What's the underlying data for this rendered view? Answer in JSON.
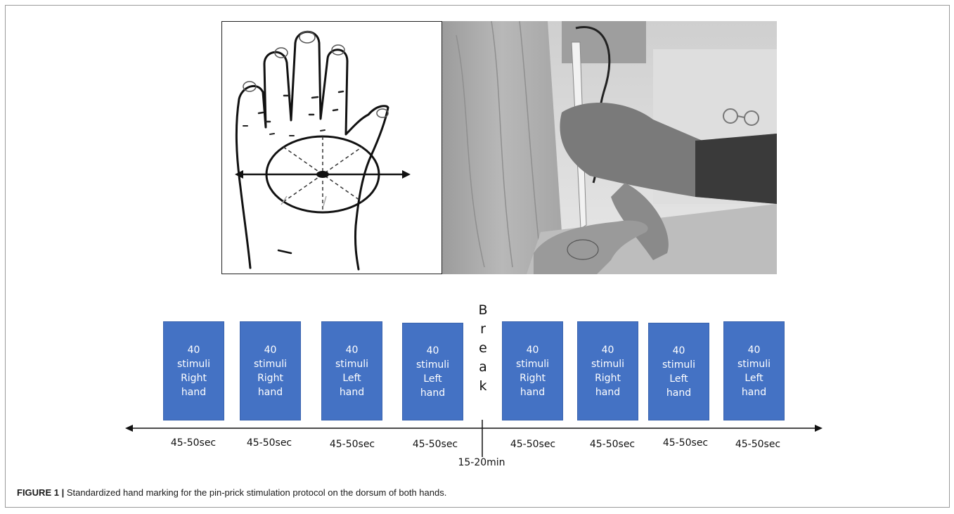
{
  "figure": {
    "caption_label": "FIGURE 1 |",
    "caption_text": " Standardized hand marking for the pin-prick stimulation protocol on the dorsum of both hands."
  },
  "panels": {
    "hand_drawing_icon": "hand-outline-with-circle-icon",
    "photo_icon": "pin-prick-photo-icon"
  },
  "timeline": {
    "blocks": [
      {
        "count": "40",
        "unit": "stimuli",
        "side": "Right",
        "part": "hand",
        "duration": "45-50sec"
      },
      {
        "count": "40",
        "unit": "stimuli",
        "side": "Right",
        "part": "hand",
        "duration": "45-50sec"
      },
      {
        "count": "40",
        "unit": "stimuli",
        "side": "Left",
        "part": "hand",
        "duration": "45-50sec"
      },
      {
        "count": "40",
        "unit": "stimuli",
        "side": "Left",
        "part": "hand",
        "duration": "45-50sec"
      },
      {
        "count": "40",
        "unit": "stimuli",
        "side": "Right",
        "part": "hand",
        "duration": "45-50sec"
      },
      {
        "count": "40",
        "unit": "stimuli",
        "side": "Right",
        "part": "hand",
        "duration": "45-50sec"
      },
      {
        "count": "40",
        "unit": "stimuli",
        "side": "Left",
        "part": "hand",
        "duration": "45-50sec"
      },
      {
        "count": "40",
        "unit": "stimuli",
        "side": "Left",
        "part": "hand",
        "duration": "45-50sec"
      }
    ],
    "break_letters": [
      "B",
      "r",
      "e",
      "a",
      "k"
    ],
    "break_duration": "15-20min",
    "block_color": "#4472c4"
  }
}
